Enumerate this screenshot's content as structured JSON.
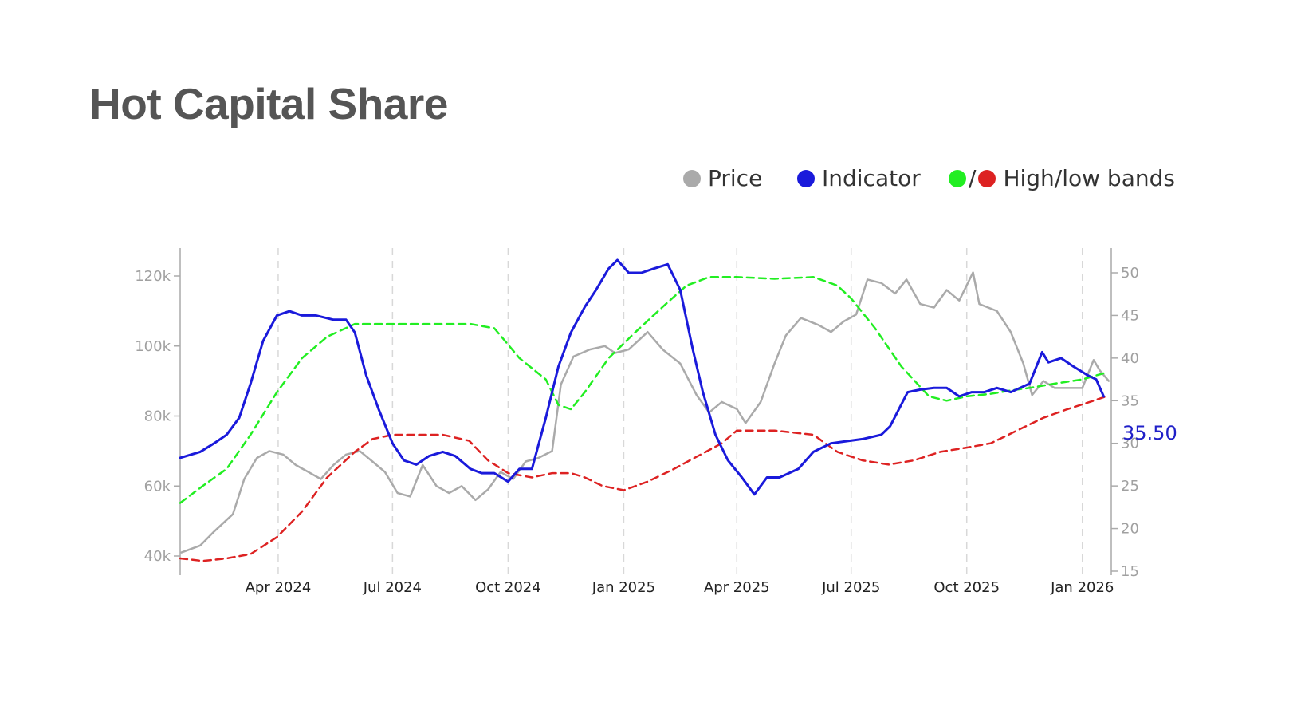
{
  "title": "Hot Capital Share",
  "legend": {
    "price_label": "Price",
    "indicator_label": "Indicator",
    "bands_label": "High/low bands",
    "separator": "/"
  },
  "colors": {
    "price": "#aaaaaa",
    "indicator": "#1a1adb",
    "high_band": "#22ee22",
    "low_band": "#dd2222",
    "grid": "#d8d8d8",
    "axis": "#aaaaaa"
  },
  "chart_data": {
    "type": "line",
    "xlim": [
      "2024-01-14",
      "2026-01-24"
    ],
    "x_ticks": [
      {
        "date": "2024-04-01",
        "label": "Apr 2024"
      },
      {
        "date": "2024-07-01",
        "label": "Jul 2024"
      },
      {
        "date": "2024-10-01",
        "label": "Oct 2024"
      },
      {
        "date": "2025-01-01",
        "label": "Jan 2025"
      },
      {
        "date": "2025-04-01",
        "label": "Apr 2025"
      },
      {
        "date": "2025-07-01",
        "label": "Jul 2025"
      },
      {
        "date": "2025-10-01",
        "label": "Oct 2025"
      },
      {
        "date": "2026-01-01",
        "label": "Jan 2026"
      }
    ],
    "y_left": {
      "range": [
        35000,
        130000
      ],
      "ticks": [
        {
          "value": 40000,
          "label": "40k"
        },
        {
          "value": 60000,
          "label": "60k"
        },
        {
          "value": 80000,
          "label": "80k"
        },
        {
          "value": 100000,
          "label": "100k"
        },
        {
          "value": 120000,
          "label": "120k"
        }
      ]
    },
    "y_right": {
      "range": [
        15,
        53
      ],
      "ticks": [
        {
          "value": 15,
          "label": "15"
        },
        {
          "value": 20,
          "label": "20"
        },
        {
          "value": 25,
          "label": "25"
        },
        {
          "value": 30,
          "label": "30"
        },
        {
          "value": 35,
          "label": "35"
        },
        {
          "value": 40,
          "label": "40"
        },
        {
          "value": 45,
          "label": "45"
        },
        {
          "value": 50,
          "label": "50"
        }
      ]
    },
    "grid": "vertical dashed at x ticks",
    "last_value_label": "35.50",
    "series": [
      {
        "name": "Price",
        "axis": "left",
        "x": [
          "2024-01-15",
          "2024-01-30",
          "2024-02-10",
          "2024-02-25",
          "2024-03-05",
          "2024-03-15",
          "2024-03-25",
          "2024-04-05",
          "2024-04-15",
          "2024-04-25",
          "2024-05-05",
          "2024-05-15",
          "2024-05-25",
          "2024-06-05",
          "2024-06-15",
          "2024-06-25",
          "2024-07-05",
          "2024-07-15",
          "2024-07-25",
          "2024-08-05",
          "2024-08-15",
          "2024-08-25",
          "2024-09-05",
          "2024-09-15",
          "2024-09-25",
          "2024-10-05",
          "2024-10-15",
          "2024-10-25",
          "2024-11-05",
          "2024-11-12",
          "2024-11-22",
          "2024-12-05",
          "2024-12-17",
          "2024-12-25",
          "2025-01-05",
          "2025-01-20",
          "2025-02-01",
          "2025-02-15",
          "2025-02-28",
          "2025-03-10",
          "2025-03-20",
          "2025-04-01",
          "2025-04-08",
          "2025-04-20",
          "2025-05-01",
          "2025-05-10",
          "2025-05-22",
          "2025-06-05",
          "2025-06-15",
          "2025-06-25",
          "2025-07-05",
          "2025-07-14",
          "2025-07-25",
          "2025-08-05",
          "2025-08-14",
          "2025-08-25",
          "2025-09-05",
          "2025-09-15",
          "2025-09-25",
          "2025-10-06",
          "2025-10-11",
          "2025-10-25",
          "2025-11-05",
          "2025-11-15",
          "2025-11-22",
          "2025-12-01",
          "2025-12-10",
          "2025-12-20",
          "2026-01-01",
          "2026-01-10",
          "2026-01-15",
          "2026-01-22"
        ],
        "y": [
          41000,
          43000,
          47000,
          52000,
          62000,
          68000,
          70000,
          69000,
          66000,
          64000,
          62000,
          66000,
          69000,
          70000,
          67000,
          64000,
          58000,
          57000,
          66000,
          60000,
          58000,
          60000,
          56000,
          59000,
          64000,
          62000,
          67000,
          68000,
          70000,
          89000,
          97000,
          99000,
          100000,
          98000,
          99000,
          104000,
          99000,
          95000,
          86000,
          81000,
          84000,
          82000,
          78000,
          84000,
          95000,
          103000,
          108000,
          106000,
          104000,
          107000,
          109000,
          119000,
          118000,
          115000,
          119000,
          112000,
          111000,
          116000,
          113000,
          121000,
          112000,
          110000,
          104000,
          95000,
          86000,
          90000,
          88000,
          88000,
          88000,
          96000,
          93000,
          90000
        ]
      },
      {
        "name": "Indicator",
        "axis": "right",
        "x": [
          "2024-01-14",
          "2024-01-30",
          "2024-02-10",
          "2024-02-20",
          "2024-03-01",
          "2024-03-10",
          "2024-03-20",
          "2024-03-31",
          "2024-04-10",
          "2024-04-20",
          "2024-05-01",
          "2024-05-15",
          "2024-05-25",
          "2024-06-01",
          "2024-06-10",
          "2024-06-20",
          "2024-07-01",
          "2024-07-10",
          "2024-07-20",
          "2024-07-30",
          "2024-08-10",
          "2024-08-20",
          "2024-09-01",
          "2024-09-10",
          "2024-09-20",
          "2024-10-01",
          "2024-10-10",
          "2024-10-20",
          "2024-10-31",
          "2024-11-10",
          "2024-11-20",
          "2024-12-01",
          "2024-12-10",
          "2024-12-20",
          "2024-12-27",
          "2025-01-05",
          "2025-01-15",
          "2025-01-25",
          "2025-02-05",
          "2025-02-15",
          "2025-02-25",
          "2025-03-05",
          "2025-03-15",
          "2025-03-25",
          "2025-04-05",
          "2025-04-15",
          "2025-04-25",
          "2025-05-05",
          "2025-05-20",
          "2025-06-01",
          "2025-06-15",
          "2025-06-30",
          "2025-07-10",
          "2025-07-25",
          "2025-08-01",
          "2025-08-15",
          "2025-08-25",
          "2025-09-05",
          "2025-09-15",
          "2025-09-25",
          "2025-10-05",
          "2025-10-15",
          "2025-10-25",
          "2025-11-05",
          "2025-11-20",
          "2025-11-30",
          "2025-12-05",
          "2025-12-15",
          "2025-12-25",
          "2026-01-05",
          "2026-01-12",
          "2026-01-18"
        ],
        "y": [
          28.3,
          29,
          30,
          31,
          33,
          37,
          42,
          45,
          45.5,
          45,
          45,
          44.5,
          44.5,
          43,
          38,
          34,
          30,
          28,
          27.5,
          28.5,
          29,
          28.5,
          27,
          26.5,
          26.5,
          25.5,
          27,
          27,
          33,
          39,
          43,
          46,
          48,
          50.5,
          51.5,
          50,
          50,
          50.5,
          51,
          48,
          41,
          36,
          31,
          28,
          26,
          24,
          26,
          26,
          27,
          29,
          30,
          30.3,
          30.5,
          31,
          32,
          36,
          36.3,
          36.5,
          36.5,
          35.5,
          36,
          36,
          36.5,
          36,
          37,
          40.7,
          39.5,
          40,
          39,
          38,
          37.5,
          35.5
        ]
      },
      {
        "name": "High band",
        "axis": "right",
        "x": [
          "2024-01-14",
          "2024-02-01",
          "2024-02-20",
          "2024-03-10",
          "2024-03-31",
          "2024-04-20",
          "2024-05-10",
          "2024-06-01",
          "2024-06-15",
          "2024-07-01",
          "2024-08-01",
          "2024-09-01",
          "2024-09-20",
          "2024-10-10",
          "2024-10-31",
          "2024-11-10",
          "2024-11-20",
          "2024-12-01",
          "2024-12-20",
          "2025-01-10",
          "2025-02-01",
          "2025-02-20",
          "2025-03-10",
          "2025-04-01",
          "2025-05-01",
          "2025-06-01",
          "2025-06-20",
          "2025-07-01",
          "2025-07-20",
          "2025-08-10",
          "2025-09-01",
          "2025-09-15",
          "2025-10-01",
          "2025-10-20",
          "2025-11-05",
          "2025-11-20",
          "2025-12-10",
          "2026-01-01",
          "2026-01-20"
        ],
        "y": [
          23,
          25,
          27,
          31,
          36,
          40,
          42.5,
          44,
          44,
          44,
          44,
          44,
          43.5,
          40,
          37.5,
          34.5,
          34,
          36,
          40,
          43,
          46,
          48.5,
          49.5,
          49.5,
          49.3,
          49.5,
          48.5,
          47,
          43.5,
          39,
          35.5,
          35,
          35.5,
          35.8,
          36.2,
          36.5,
          37,
          37.5,
          38.3
        ]
      },
      {
        "name": "Low band",
        "axis": "right",
        "x": [
          "2024-01-14",
          "2024-02-01",
          "2024-02-20",
          "2024-03-10",
          "2024-03-31",
          "2024-04-20",
          "2024-05-10",
          "2024-06-01",
          "2024-06-15",
          "2024-07-01",
          "2024-07-20",
          "2024-08-10",
          "2024-08-31",
          "2024-09-15",
          "2024-10-01",
          "2024-10-20",
          "2024-11-05",
          "2024-11-20",
          "2024-12-01",
          "2024-12-15",
          "2025-01-01",
          "2025-01-20",
          "2025-02-10",
          "2025-03-01",
          "2025-03-20",
          "2025-04-01",
          "2025-05-01",
          "2025-06-01",
          "2025-06-20",
          "2025-07-10",
          "2025-07-31",
          "2025-08-20",
          "2025-09-10",
          "2025-10-01",
          "2025-10-20",
          "2025-11-10",
          "2025-12-01",
          "2025-12-20",
          "2026-01-10",
          "2026-01-20"
        ],
        "y": [
          16.5,
          16.2,
          16.5,
          17,
          19,
          22,
          26,
          29,
          30.5,
          31,
          31,
          31,
          30.3,
          28,
          26.5,
          26,
          26.5,
          26.5,
          26,
          25,
          24.5,
          25.5,
          27,
          28.5,
          30,
          31.5,
          31.5,
          31,
          29,
          28,
          27.5,
          28,
          29,
          29.5,
          30,
          31.5,
          33,
          34,
          35,
          35.5
        ]
      }
    ]
  }
}
